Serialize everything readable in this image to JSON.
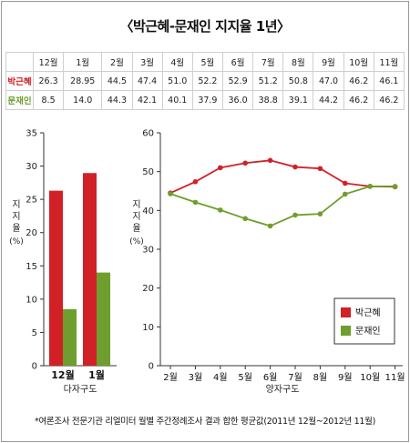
{
  "title": "〈박근혜-문재인 지지율 1년〉",
  "table": {
    "months": [
      "12월",
      "1월",
      "2월",
      "3월",
      "4월",
      "5월",
      "6월",
      "7월",
      "8월",
      "9월",
      "10월",
      "11월"
    ],
    "rows": [
      {
        "name": "박근혜",
        "values": [
          "26.3",
          "28.95",
          "44.5",
          "47.4",
          "51.0",
          "52.2",
          "52.9",
          "51.2",
          "50.8",
          "47.0",
          "46.2",
          "46.1"
        ]
      },
      {
        "name": "문재인",
        "values": [
          "8.5",
          "14.0",
          "44.3",
          "42.1",
          "40.1",
          "37.9",
          "36.0",
          "38.8",
          "39.1",
          "44.2",
          "46.2",
          "46.2"
        ]
      }
    ]
  },
  "colors": {
    "park": "#d22027",
    "moon": "#6e9e2d"
  },
  "chart_data": [
    {
      "type": "bar",
      "categories": [
        "12월",
        "1월"
      ],
      "series": [
        {
          "name": "박근혜",
          "values": [
            26.3,
            28.95
          ]
        },
        {
          "name": "문재인",
          "values": [
            8.5,
            14.0
          ]
        }
      ],
      "yticks": [
        0,
        5,
        10,
        15,
        20,
        25,
        30,
        35
      ],
      "ylim": [
        0,
        35
      ],
      "ylabel": "지지율 (%)",
      "xlabel": "다자구도"
    },
    {
      "type": "line",
      "categories": [
        "2월",
        "3월",
        "4월",
        "5월",
        "6월",
        "7월",
        "8월",
        "9월",
        "10월",
        "11월"
      ],
      "series": [
        {
          "name": "박근혜",
          "values": [
            44.5,
            47.4,
            51.0,
            52.2,
            52.9,
            51.2,
            50.8,
            47.0,
            46.2,
            46.1
          ]
        },
        {
          "name": "문재인",
          "values": [
            44.3,
            42.1,
            40.1,
            37.9,
            36.0,
            38.8,
            39.1,
            44.2,
            46.2,
            46.2
          ]
        }
      ],
      "yticks": [
        0,
        10,
        20,
        30,
        40,
        50,
        60
      ],
      "ylim": [
        0,
        60
      ],
      "ylabel": "지지율 (%)",
      "xlabel": "양자구도",
      "legend": "bottom-right"
    }
  ],
  "axis_labels": {
    "ylabel_chars": [
      "지",
      "지",
      "율"
    ],
    "ylabel_unit": "(%)"
  },
  "footnote": "*여론조사 전문기관 리얼미터 월별 주간정례조사 결과 합한 평균값(2011년 12월~2012년 11월)"
}
